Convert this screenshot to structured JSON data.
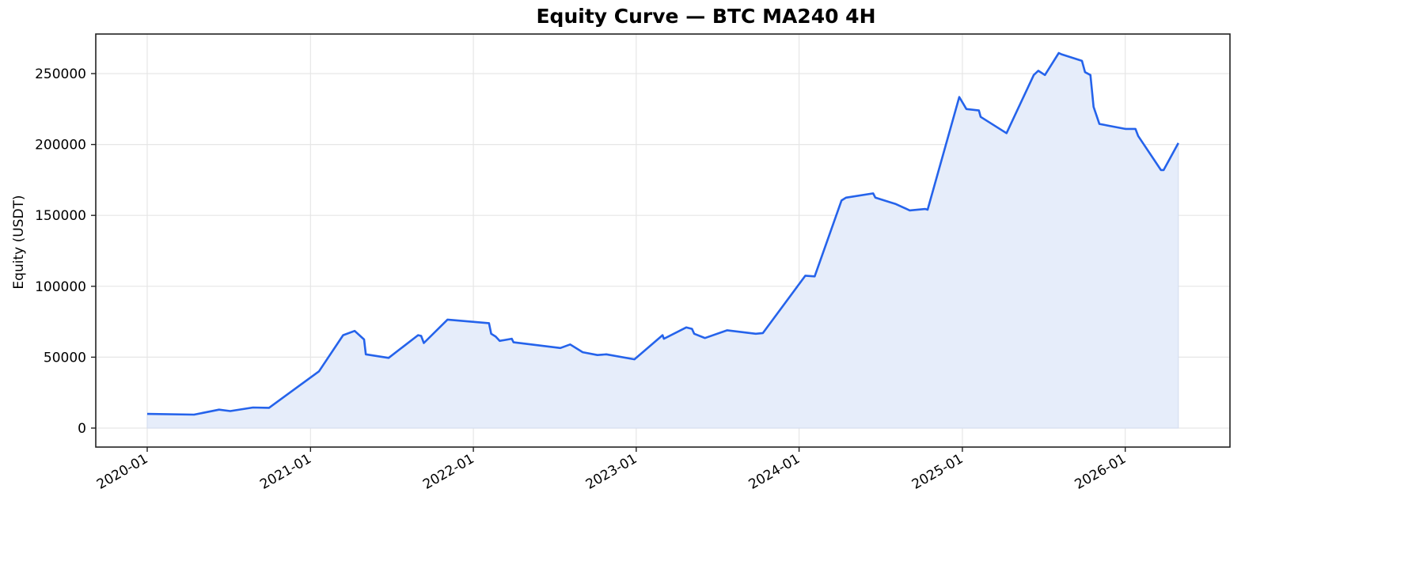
{
  "header": {
    "title": "Equity Curve — BTC MA240 4H"
  },
  "axes": {
    "ylabel": "Equity (USDT)",
    "yticks": [
      "0",
      "50000",
      "100000",
      "150000",
      "200000",
      "250000"
    ],
    "xticks": [
      "2020-01",
      "2021-01",
      "2022-01",
      "2023-01",
      "2024-01",
      "2025-01",
      "2026-01"
    ]
  },
  "colors": {
    "line": "#2563eb",
    "fill": "#e6edfa",
    "grid": "#e6e6e6",
    "axis": "#222222"
  },
  "chart_data": {
    "type": "area",
    "title": "Equity Curve — BTC MA240 4H",
    "xlabel": "",
    "ylabel": "Equity (USDT)",
    "ylim": [
      -12500,
      278000
    ],
    "xlim": [
      "2019-09",
      "2026-10"
    ],
    "grid": true,
    "legend": null,
    "series": [
      {
        "name": "Equity",
        "x": [
          "2020-01-01",
          "2020-04-15",
          "2020-06-10",
          "2020-07-05",
          "2020-08-25",
          "2020-09-30",
          "2021-01-20",
          "2021-03-15",
          "2021-04-10",
          "2021-05-01",
          "2021-05-05",
          "2021-06-25",
          "2021-08-30",
          "2021-09-06",
          "2021-09-12",
          "2021-11-04",
          "2022-02-05",
          "2022-02-10",
          "2022-02-20",
          "2022-03-01",
          "2022-03-28",
          "2022-04-01",
          "2022-07-15",
          "2022-08-06",
          "2022-09-03",
          "2022-10-06",
          "2022-10-26",
          "2022-12-28",
          "2023-03-01",
          "2023-03-04",
          "2023-04-23",
          "2023-05-06",
          "2023-05-11",
          "2023-06-04",
          "2023-07-24",
          "2023-09-26",
          "2023-10-12",
          "2024-01-15",
          "2024-02-05",
          "2024-04-05",
          "2024-04-15",
          "2024-06-15",
          "2024-06-20",
          "2024-08-05",
          "2024-09-05",
          "2024-10-10",
          "2024-10-15",
          "2024-12-25",
          "2025-01-10",
          "2025-02-07",
          "2025-02-11",
          "2025-04-10",
          "2025-06-10",
          "2025-06-20",
          "2025-07-05",
          "2025-08-05",
          "2025-08-12",
          "2025-09-26",
          "2025-10-03",
          "2025-10-15",
          "2025-10-22",
          "2025-11-04",
          "2026-01-01",
          "2026-01-24",
          "2026-01-30",
          "2026-03-22",
          "2026-03-28",
          "2026-04-30"
        ],
        "values": [
          10000,
          9500,
          13000,
          12000,
          14500,
          14300,
          40000,
          65500,
          68500,
          62500,
          52000,
          49500,
          65500,
          65000,
          60000,
          76500,
          74000,
          66500,
          64500,
          61500,
          63000,
          60500,
          56500,
          59000,
          53500,
          51500,
          52000,
          48500,
          65500,
          63000,
          71000,
          70000,
          66500,
          63500,
          69000,
          66500,
          67000,
          107500,
          107000,
          160500,
          162500,
          165500,
          162500,
          158000,
          153500,
          154500,
          154000,
          233500,
          225000,
          224000,
          219500,
          208000,
          249000,
          252000,
          249000,
          264500,
          263500,
          259000,
          251000,
          249000,
          226500,
          214500,
          211000,
          211000,
          206000,
          182000,
          182000,
          201000
        ]
      }
    ]
  }
}
